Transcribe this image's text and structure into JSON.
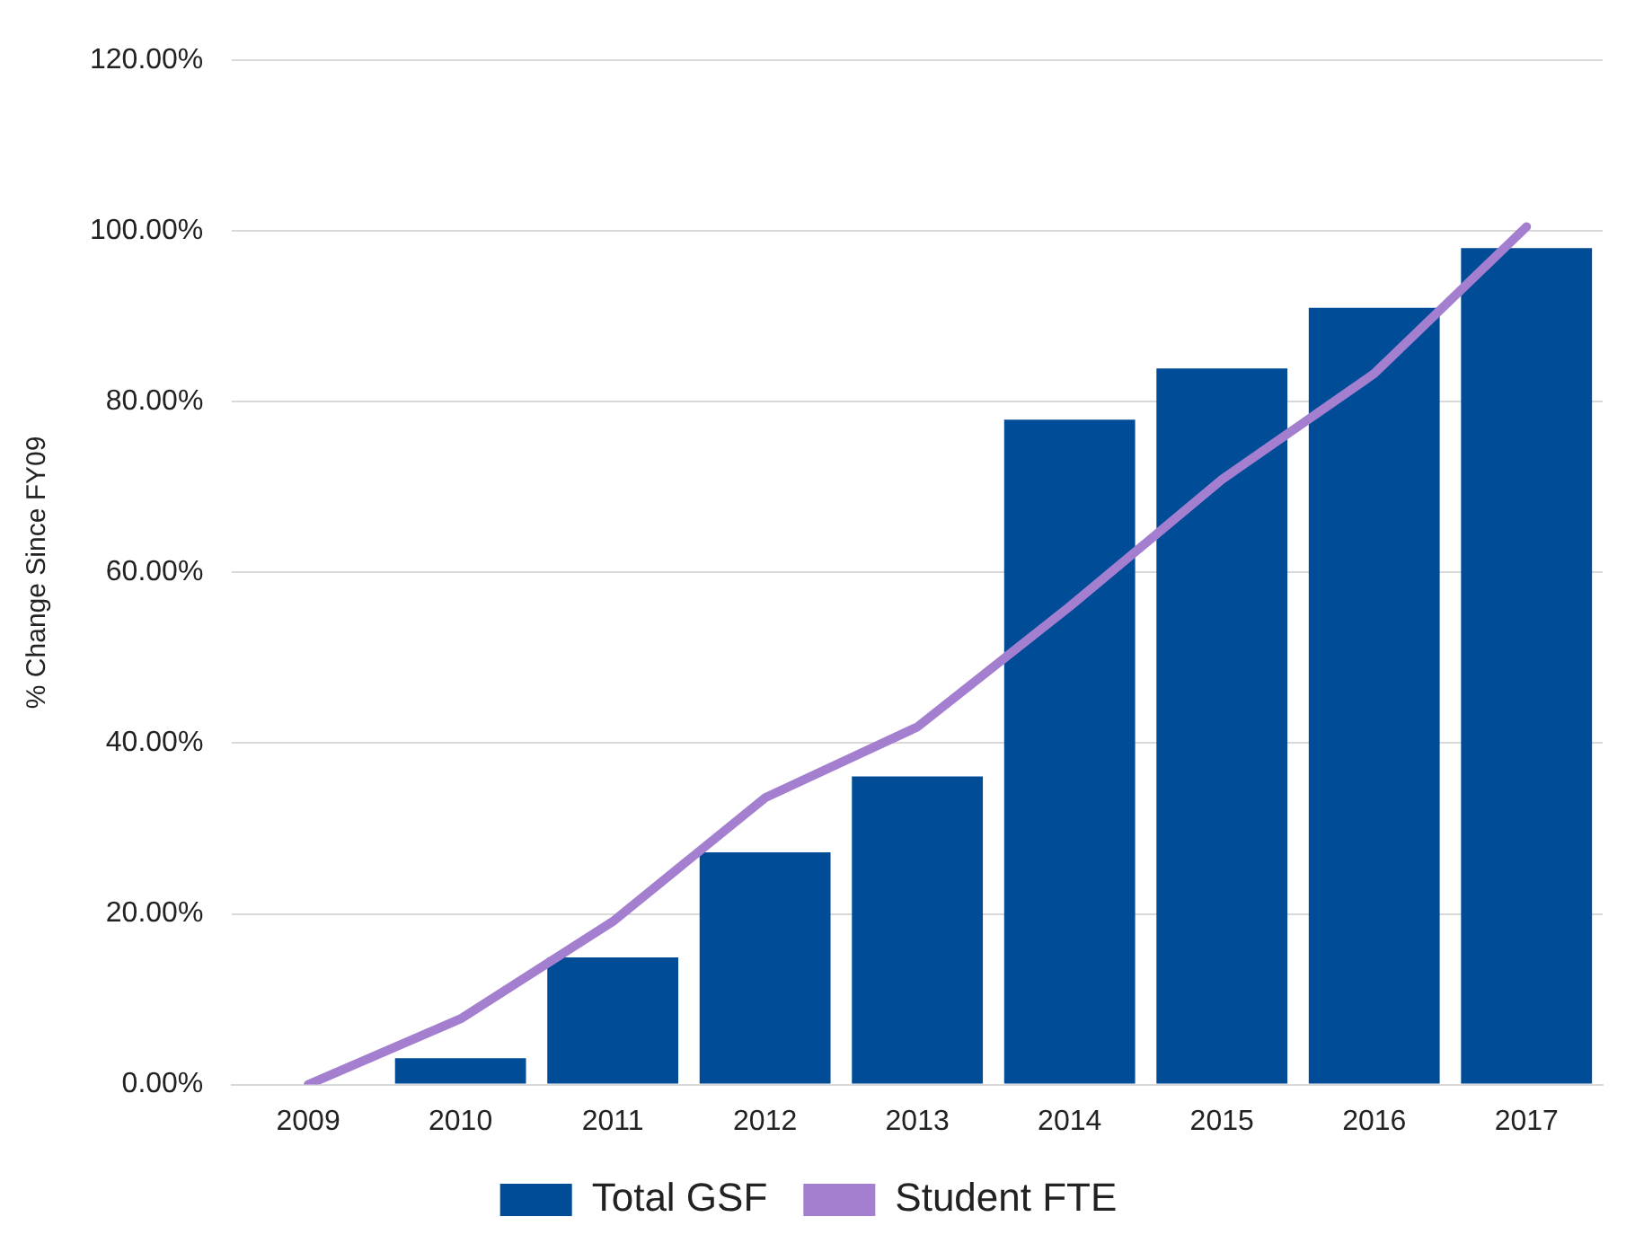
{
  "chart_data": {
    "type": "bar",
    "ylabel": "% Change Since FY09",
    "categories": [
      "2009",
      "2010",
      "2011",
      "2012",
      "2013",
      "2014",
      "2015",
      "2016",
      "2017"
    ],
    "series": [
      {
        "name": "Total GSF",
        "color": "#004c97",
        "values": [
          0,
          3.1,
          14.9,
          27.2,
          36.1,
          77.9,
          83.9,
          91.0,
          98.0
        ]
      },
      {
        "name": "Student FTE",
        "type": "line",
        "color": "#a47fd0",
        "values": [
          0,
          7.7,
          19.1,
          33.6,
          41.9,
          56,
          70.9,
          83.3,
          100.5
        ]
      }
    ],
    "ylim": [
      0,
      120
    ],
    "yticks": [
      {
        "value": 0,
        "label": "0.00%"
      },
      {
        "value": 20,
        "label": "20.00%"
      },
      {
        "value": 40,
        "label": "40.00%"
      },
      {
        "value": 60,
        "label": "60.00%"
      },
      {
        "value": 80,
        "label": "80.00%"
      },
      {
        "value": 100,
        "label": "100.00%"
      },
      {
        "value": 120,
        "label": "120.00%"
      }
    ],
    "grid": "y",
    "legend": "bottom",
    "marker": "none",
    "line_style": "solid"
  }
}
